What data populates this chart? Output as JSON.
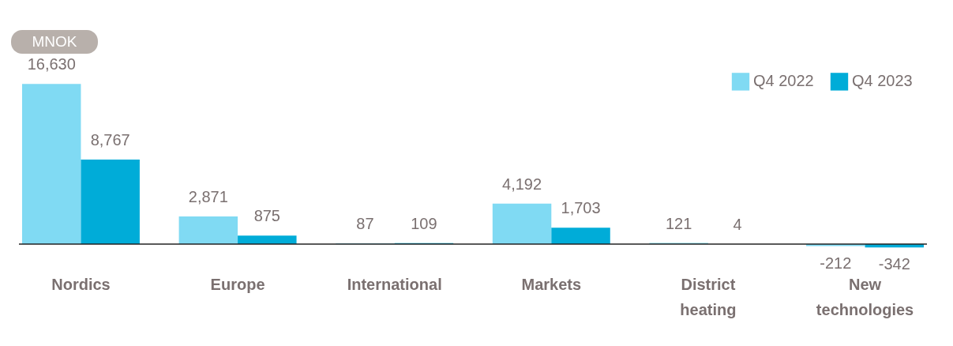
{
  "chart_data": {
    "type": "bar",
    "ylabel": "MNOK",
    "categories": [
      "Nordics",
      "Europe",
      "International",
      "Markets",
      "District heating",
      "New technologies"
    ],
    "series": [
      {
        "name": "Q4 2022",
        "color": "#80daf3",
        "values": [
          16630,
          2871,
          87,
          4192,
          121,
          -212
        ],
        "value_labels": [
          "16,630",
          "2,871",
          "87",
          "4,192",
          "121",
          "-212"
        ]
      },
      {
        "name": "Q4 2023",
        "color": "#00acd8",
        "values": [
          8767,
          875,
          109,
          1703,
          4,
          -342
        ],
        "value_labels": [
          "8,767",
          "875",
          "109",
          "1,703",
          "4",
          "-342"
        ]
      }
    ],
    "legend": "top right",
    "grid": false
  }
}
